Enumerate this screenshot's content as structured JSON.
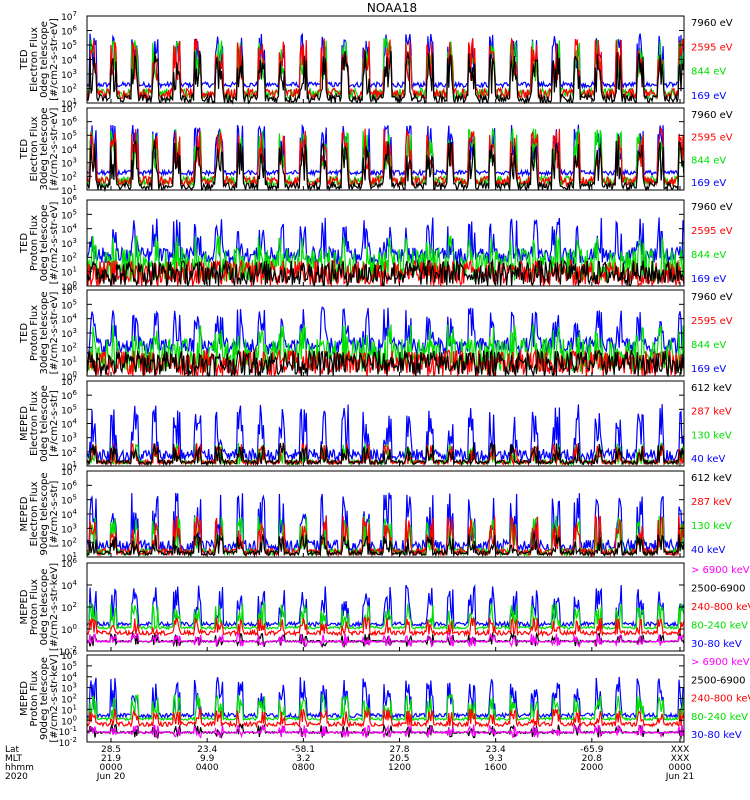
{
  "title": "NOAA18",
  "chart_data": [
    {
      "type": "line",
      "ylabel": [
        "TED",
        "Electron Flux",
        "0deg telescope",
        "[#/cm2-s-str-eV]"
      ],
      "ylim_exp": [
        1,
        7
      ],
      "log": true,
      "ticks": [
        "10",
        "10",
        "10",
        "10",
        "10",
        "10",
        "10"
      ],
      "tick_exps": [
        "1",
        "2",
        "3",
        "4",
        "5",
        "6",
        "7"
      ],
      "series": [
        {
          "name": "7960 eV",
          "color": "#000000",
          "pattern": "el_lo"
        },
        {
          "name": "2595 eV",
          "color": "#ff0000",
          "pattern": "el_mid"
        },
        {
          "name": "844 eV",
          "color": "#00e000",
          "pattern": "el_mid"
        },
        {
          "name": "169 eV",
          "color": "#0000ff",
          "pattern": "el_hi"
        }
      ]
    },
    {
      "type": "line",
      "ylabel": [
        "TED",
        "Electron Flux",
        "30deg telescope",
        "[#/cm2-s-str-eV]"
      ],
      "ylim_exp": [
        1,
        7
      ],
      "log": true,
      "ticks": [
        "10",
        "10",
        "10",
        "10",
        "10",
        "10",
        "10"
      ],
      "tick_exps": [
        "1",
        "2",
        "3",
        "4",
        "5",
        "6",
        "7"
      ],
      "series": [
        {
          "name": "7960 eV",
          "color": "#000000",
          "pattern": "el_lo"
        },
        {
          "name": "2595 eV",
          "color": "#ff0000",
          "pattern": "el_mid"
        },
        {
          "name": "844 eV",
          "color": "#00e000",
          "pattern": "el_mid"
        },
        {
          "name": "169 eV",
          "color": "#0000ff",
          "pattern": "el_hi"
        }
      ]
    },
    {
      "type": "line",
      "ylabel": [
        "TED",
        "Proton Flux",
        "0deg telescope",
        "[#/cm2-s-str-eV]"
      ],
      "ylim_exp": [
        0,
        6
      ],
      "log": true,
      "ticks": [
        "10",
        "10",
        "10",
        "10",
        "10",
        "10",
        "10"
      ],
      "tick_exps": [
        "0",
        "1",
        "2",
        "3",
        "4",
        "5",
        "6"
      ],
      "series": [
        {
          "name": "7960 eV",
          "color": "#000000",
          "pattern": "pr_noise"
        },
        {
          "name": "2595 eV",
          "color": "#ff0000",
          "pattern": "pr_noise"
        },
        {
          "name": "844 eV",
          "color": "#00e000",
          "pattern": "pr_green"
        },
        {
          "name": "169 eV",
          "color": "#0000ff",
          "pattern": "pr_blue"
        }
      ]
    },
    {
      "type": "line",
      "ylabel": [
        "TED",
        "Proton Flux",
        "30deg telescope",
        "[#/cm2-s-str-eV]"
      ],
      "ylim_exp": [
        0,
        6
      ],
      "log": true,
      "ticks": [
        "10",
        "10",
        "10",
        "10",
        "10",
        "10",
        "10"
      ],
      "tick_exps": [
        "0",
        "1",
        "2",
        "3",
        "4",
        "5",
        "6"
      ],
      "series": [
        {
          "name": "7960 eV",
          "color": "#000000",
          "pattern": "pr_noise"
        },
        {
          "name": "2595 eV",
          "color": "#ff0000",
          "pattern": "pr_noise"
        },
        {
          "name": "844 eV",
          "color": "#00e000",
          "pattern": "pr_green"
        },
        {
          "name": "169 eV",
          "color": "#0000ff",
          "pattern": "pr_blue"
        }
      ]
    },
    {
      "type": "line",
      "ylabel": [
        "MEPED",
        "Electron Flux",
        "0deg telescope",
        "[#/cm2-s-str]"
      ],
      "ylim_exp": [
        1,
        7
      ],
      "log": true,
      "ticks": [
        "10",
        "10",
        "10",
        "10",
        "10",
        "10",
        "10"
      ],
      "tick_exps": [
        "1",
        "2",
        "3",
        "4",
        "5",
        "6",
        "7"
      ],
      "series": [
        {
          "name": "612 keV",
          "color": "#000000",
          "pattern": "me_base"
        },
        {
          "name": "287 keV",
          "color": "#ff0000",
          "pattern": "me_base"
        },
        {
          "name": "130 keV",
          "color": "#00e000",
          "pattern": "me_base"
        },
        {
          "name": "40 keV",
          "color": "#0000ff",
          "pattern": "me_spike"
        }
      ]
    },
    {
      "type": "line",
      "ylabel": [
        "MEPED",
        "Electron Flux",
        "90deg telescope",
        "[#/cm2-s-str]"
      ],
      "ylim_exp": [
        1,
        7
      ],
      "log": true,
      "ticks": [
        "10",
        "10",
        "10",
        "10",
        "10",
        "10",
        "10"
      ],
      "tick_exps": [
        "1",
        "2",
        "3",
        "4",
        "5",
        "6",
        "7"
      ],
      "series": [
        {
          "name": "612 keV",
          "color": "#000000",
          "pattern": "me_base"
        },
        {
          "name": "287 keV",
          "color": "#ff0000",
          "pattern": "me_mid"
        },
        {
          "name": "130 keV",
          "color": "#00e000",
          "pattern": "me_mid"
        },
        {
          "name": "40 keV",
          "color": "#0000ff",
          "pattern": "me_spike"
        }
      ]
    },
    {
      "type": "line",
      "ylabel": [
        "MEPED",
        "Proton Flux",
        "0deg telescope",
        "[#/cm2-s-str-keV]"
      ],
      "ylim_exp": [
        -2,
        6
      ],
      "log": true,
      "ticks": [
        "10",
        "10",
        "10",
        "10",
        "10"
      ],
      "tick_exps": [
        "-2",
        "0",
        "2",
        "4",
        "6"
      ],
      "series": [
        {
          "name": "> 6900 keV",
          "color": "#ff00ff",
          "pattern": "mp_low"
        },
        {
          "name": "2500-6900",
          "color": "#000000",
          "pattern": "mp_low"
        },
        {
          "name": "240-800 keV",
          "color": "#ff0000",
          "pattern": "mp_red"
        },
        {
          "name": "80-240 keV",
          "color": "#00e000",
          "pattern": "mp_green"
        },
        {
          "name": "30-80 keV",
          "color": "#0000ff",
          "pattern": "mp_blue"
        }
      ]
    },
    {
      "type": "line",
      "ylabel": [
        "MEPED",
        "Proton Flux",
        "90deg telescope",
        "[#/cm2-s-str-keV]"
      ],
      "ylim_exp": [
        -2,
        6
      ],
      "log": true,
      "ticks": [
        "10",
        "10",
        "10",
        "10",
        "10",
        "10",
        "10",
        "10",
        "10"
      ],
      "tick_exps": [
        "-2",
        "-1",
        "0",
        "1",
        "2",
        "3",
        "4",
        "5",
        "6"
      ],
      "series": [
        {
          "name": "> 6900 keV",
          "color": "#ff00ff",
          "pattern": "mp_low"
        },
        {
          "name": "2500-6900",
          "color": "#000000",
          "pattern": "mp_low"
        },
        {
          "name": "240-800 keV",
          "color": "#ff0000",
          "pattern": "mp_red"
        },
        {
          "name": "80-240 keV",
          "color": "#00e000",
          "pattern": "mp_green"
        },
        {
          "name": "30-80 keV",
          "color": "#0000ff",
          "pattern": "mp_blue"
        }
      ]
    }
  ],
  "x_axis": {
    "row_labels": [
      "Lat",
      "MLT",
      "hhmm",
      "2020"
    ],
    "columns": [
      {
        "lat": "28.5",
        "mlt": "21.9",
        "hhmm": "0000",
        "date": "Jun 20"
      },
      {
        "lat": "23.4",
        "mlt": "9.9",
        "hhmm": "0400",
        "date": ""
      },
      {
        "lat": "-58.1",
        "mlt": "3.2",
        "hhmm": "0800",
        "date": ""
      },
      {
        "lat": "27.8",
        "mlt": "20.5",
        "hhmm": "1200",
        "date": ""
      },
      {
        "lat": "23.4",
        "mlt": "9.3",
        "hhmm": "1600",
        "date": ""
      },
      {
        "lat": "-65.9",
        "mlt": "20.8",
        "hhmm": "2000",
        "date": ""
      },
      {
        "lat": "XXX",
        "mlt": "XXX",
        "hhmm": "0000",
        "date": "Jun 21"
      }
    ]
  }
}
